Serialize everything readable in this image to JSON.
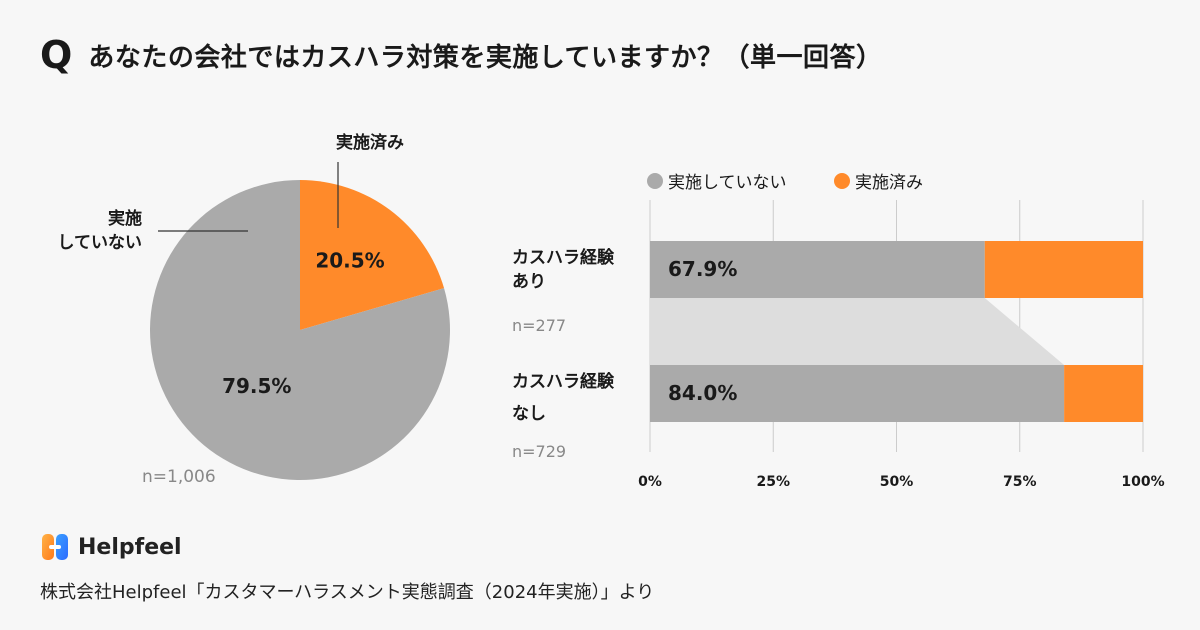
{
  "header": {
    "q_mark": "Q",
    "question": "あなたの会社ではカスハラ対策を実施していますか？（単一回答）"
  },
  "colors": {
    "gray": "#aaaaaa",
    "orange": "#ff8a2a",
    "connector": "#dddddd",
    "grid": "#cccccc"
  },
  "chart_data": [
    {
      "type": "pie",
      "slices": [
        {
          "label": "実施済み",
          "value": 20.5,
          "value_label": "20.5%"
        },
        {
          "label_lines": [
            "実施",
            "していない"
          ],
          "value": 79.5,
          "value_label": "79.5%"
        }
      ],
      "n_label": "n=1,006"
    },
    {
      "type": "bar",
      "orientation": "horizontal",
      "stacked": true,
      "legend": [
        "実施していない",
        "実施済み"
      ],
      "legend_position": "top",
      "categories": [
        {
          "label_lines": [
            "カスハラ経験",
            "あり"
          ],
          "n_label": "n=277"
        },
        {
          "label_lines": [
            "カスハラ経験",
            "なし"
          ],
          "n_label": "n=729"
        }
      ],
      "series": [
        {
          "name": "実施していない",
          "values": [
            67.9,
            84.0
          ],
          "value_labels": [
            "67.9%",
            "84.0%"
          ]
        },
        {
          "name": "実施済み",
          "values": [
            32.1,
            16.0
          ]
        }
      ],
      "xlim": [
        0,
        100
      ],
      "xticks": [
        "0%",
        "25%",
        "50%",
        "75%",
        "100%"
      ],
      "grid": true
    }
  ],
  "footer": {
    "logo_text": "Helpfeel",
    "source": "株式会社Helpfeel「カスタマーハラスメント実態調査（2024年実施）」より"
  }
}
